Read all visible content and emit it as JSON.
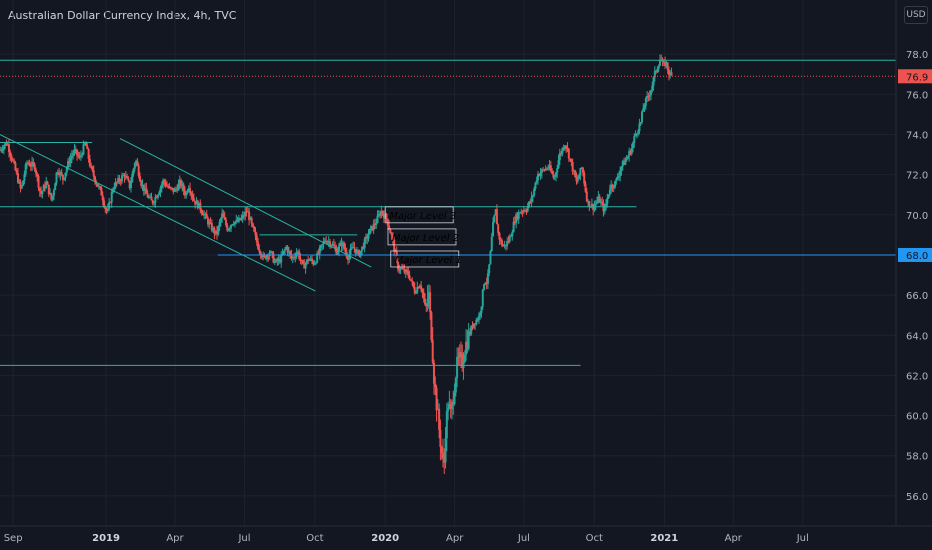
{
  "header": {
    "title": "Australian Dollar Currency Index, 4h, TVC",
    "currency_button": "USD"
  },
  "colors": {
    "background": "#131722",
    "grid": "#1e222d",
    "up": "#26a69a",
    "down": "#ef5350",
    "level_line": "#2bb3a3",
    "support_line": "#2196f3",
    "last_price": "#ef5350",
    "axis_text": "#b2b5be",
    "label_box": "#d1d4dc"
  },
  "chart_data": {
    "type": "candlestick",
    "title": "Australian Dollar Currency Index, 4h, TVC",
    "currency": "USD",
    "x_axis": {
      "ticks": [
        {
          "label": "Sep",
          "t": 2018.667,
          "major": false
        },
        {
          "label": "2019",
          "t": 2019.0,
          "major": true
        },
        {
          "label": "Apr",
          "t": 2019.247,
          "major": false
        },
        {
          "label": "Jul",
          "t": 2019.496,
          "major": false
        },
        {
          "label": "Oct",
          "t": 2019.748,
          "major": false
        },
        {
          "label": "2020",
          "t": 2020.0,
          "major": true
        },
        {
          "label": "Apr",
          "t": 2020.249,
          "major": false
        },
        {
          "label": "Jul",
          "t": 2020.497,
          "major": false
        },
        {
          "label": "Oct",
          "t": 2020.749,
          "major": false
        },
        {
          "label": "2021",
          "t": 2021.0,
          "major": true
        },
        {
          "label": "Apr",
          "t": 2021.247,
          "major": false
        },
        {
          "label": "Jul",
          "t": 2021.496,
          "major": false
        }
      ],
      "range": [
        2018.62,
        2021.83
      ]
    },
    "y_axis": {
      "ticks": [
        56.0,
        58.0,
        60.0,
        62.0,
        64.0,
        66.0,
        68.0,
        70.0,
        72.0,
        74.0,
        76.0,
        78.0
      ],
      "range": [
        54.5,
        80.7
      ]
    },
    "price_path": [
      [
        2018.62,
        73.2
      ],
      [
        2018.65,
        73.6
      ],
      [
        2018.68,
        72.2
      ],
      [
        2018.7,
        71.2
      ],
      [
        2018.72,
        72.6
      ],
      [
        2018.75,
        72.4
      ],
      [
        2018.77,
        71.0
      ],
      [
        2018.79,
        71.6
      ],
      [
        2018.81,
        70.7
      ],
      [
        2018.83,
        72.3
      ],
      [
        2018.85,
        71.8
      ],
      [
        2018.87,
        72.6
      ],
      [
        2018.89,
        73.2
      ],
      [
        2018.91,
        72.8
      ],
      [
        2018.93,
        73.6
      ],
      [
        2018.95,
        72.3
      ],
      [
        2018.97,
        71.6
      ],
      [
        2018.99,
        71.0
      ],
      [
        2019.0,
        70.4
      ],
      [
        2019.01,
        70.1
      ],
      [
        2019.03,
        71.4
      ],
      [
        2019.05,
        71.7
      ],
      [
        2019.07,
        72.0
      ],
      [
        2019.09,
        71.4
      ],
      [
        2019.11,
        72.8
      ],
      [
        2019.13,
        71.6
      ],
      [
        2019.15,
        71.0
      ],
      [
        2019.17,
        70.6
      ],
      [
        2019.19,
        71.1
      ],
      [
        2019.21,
        71.7
      ],
      [
        2019.23,
        71.3
      ],
      [
        2019.25,
        71.2
      ],
      [
        2019.27,
        71.6
      ],
      [
        2019.29,
        71.0
      ],
      [
        2019.3,
        71.5
      ],
      [
        2019.32,
        70.7
      ],
      [
        2019.34,
        70.4
      ],
      [
        2019.36,
        69.9
      ],
      [
        2019.38,
        69.4
      ],
      [
        2019.4,
        69.0
      ],
      [
        2019.42,
        70.0
      ],
      [
        2019.44,
        69.3
      ],
      [
        2019.46,
        69.7
      ],
      [
        2019.47,
        69.6
      ],
      [
        2019.49,
        69.8
      ],
      [
        2019.51,
        70.2
      ],
      [
        2019.53,
        69.3
      ],
      [
        2019.55,
        68.4
      ],
      [
        2019.57,
        67.8
      ],
      [
        2019.59,
        68.2
      ],
      [
        2019.61,
        67.6
      ],
      [
        2019.63,
        67.8
      ],
      [
        2019.65,
        68.4
      ],
      [
        2019.67,
        67.8
      ],
      [
        2019.69,
        68.2
      ],
      [
        2019.71,
        67.4
      ],
      [
        2019.73,
        67.8
      ],
      [
        2019.75,
        67.6
      ],
      [
        2019.77,
        68.2
      ],
      [
        2019.79,
        68.8
      ],
      [
        2019.81,
        68.6
      ],
      [
        2019.83,
        68.2
      ],
      [
        2019.85,
        68.6
      ],
      [
        2019.87,
        67.9
      ],
      [
        2019.89,
        68.4
      ],
      [
        2019.91,
        68.0
      ],
      [
        2019.93,
        68.6
      ],
      [
        2019.95,
        69.2
      ],
      [
        2019.97,
        69.6
      ],
      [
        2019.99,
        70.2
      ],
      [
        2020.01,
        69.8
      ],
      [
        2020.03,
        68.8
      ],
      [
        2020.05,
        67.4
      ],
      [
        2020.07,
        67.2
      ],
      [
        2020.09,
        67.0
      ],
      [
        2020.11,
        66.2
      ],
      [
        2020.13,
        66.6
      ],
      [
        2020.14,
        66.0
      ],
      [
        2020.15,
        65.2
      ],
      [
        2020.16,
        66.2
      ],
      [
        2020.165,
        65.0
      ],
      [
        2020.17,
        64.2
      ],
      [
        2020.18,
        61.8
      ],
      [
        2020.19,
        60.4
      ],
      [
        2020.2,
        59.0
      ],
      [
        2020.21,
        57.8
      ],
      [
        2020.215,
        57.2
      ],
      [
        2020.22,
        59.2
      ],
      [
        2020.23,
        60.6
      ],
      [
        2020.24,
        60.0
      ],
      [
        2020.25,
        61.2
      ],
      [
        2020.26,
        62.4
      ],
      [
        2020.27,
        62.8
      ],
      [
        2020.28,
        62.6
      ],
      [
        2020.29,
        63.4
      ],
      [
        2020.31,
        64.2
      ],
      [
        2020.32,
        64.6
      ],
      [
        2020.34,
        64.9
      ],
      [
        2020.35,
        65.6
      ],
      [
        2020.36,
        66.8
      ],
      [
        2020.37,
        66.6
      ],
      [
        2020.38,
        67.8
      ],
      [
        2020.39,
        69.4
      ],
      [
        2020.4,
        70.2
      ],
      [
        2020.41,
        69.0
      ],
      [
        2020.42,
        68.6
      ],
      [
        2020.43,
        68.4
      ],
      [
        2020.45,
        68.8
      ],
      [
        2020.47,
        69.8
      ],
      [
        2020.49,
        70.2
      ],
      [
        2020.51,
        70.3
      ],
      [
        2020.53,
        70.8
      ],
      [
        2020.55,
        72.0
      ],
      [
        2020.57,
        72.2
      ],
      [
        2020.59,
        72.4
      ],
      [
        2020.61,
        71.8
      ],
      [
        2020.63,
        73.0
      ],
      [
        2020.65,
        73.6
      ],
      [
        2020.67,
        72.6
      ],
      [
        2020.69,
        71.6
      ],
      [
        2020.71,
        72.4
      ],
      [
        2020.72,
        71.4
      ],
      [
        2020.73,
        70.6
      ],
      [
        2020.75,
        70.4
      ],
      [
        2020.77,
        70.8
      ],
      [
        2020.79,
        70.2
      ],
      [
        2020.81,
        71.4
      ],
      [
        2020.83,
        71.6
      ],
      [
        2020.85,
        72.4
      ],
      [
        2020.87,
        72.8
      ],
      [
        2020.89,
        73.4
      ],
      [
        2020.9,
        74.0
      ],
      [
        2020.92,
        74.6
      ],
      [
        2020.93,
        75.4
      ],
      [
        2020.95,
        76.0
      ],
      [
        2020.96,
        76.4
      ],
      [
        2020.97,
        77.0
      ],
      [
        2020.99,
        77.8
      ],
      [
        2021.0,
        77.4
      ],
      [
        2021.01,
        77.6
      ],
      [
        2021.02,
        77.1
      ],
      [
        2021.03,
        76.9
      ]
    ],
    "horizontal_lines": [
      {
        "price": 77.7,
        "x1": 2018.62,
        "x2": 2021.83,
        "color": "level_line"
      },
      {
        "price": 76.9,
        "x1": 2018.62,
        "x2": 2021.83,
        "color": "last_price",
        "dotted": true
      },
      {
        "price": 73.6,
        "x1": 2018.62,
        "x2": 2018.95,
        "color": "level_line"
      },
      {
        "price": 70.4,
        "x1": 2018.62,
        "x2": 2020.9,
        "color": "level_line"
      },
      {
        "price": 69.0,
        "x1": 2019.55,
        "x2": 2019.9,
        "color": "level_line"
      },
      {
        "price": 68.0,
        "x1": 2019.4,
        "x2": 2021.83,
        "color": "support_line"
      },
      {
        "price": 62.5,
        "x1": 2018.62,
        "x2": 2020.7,
        "color": "level_line"
      }
    ],
    "trend_lines": [
      {
        "x1": 2018.62,
        "y1": 74.0,
        "x2": 2019.75,
        "y2": 66.2
      },
      {
        "x1": 2019.05,
        "y1": 73.8,
        "x2": 2019.95,
        "y2": 67.4
      }
    ],
    "annotations": [
      {
        "text": "Major Level 3",
        "t": 2020.0,
        "price": 70.0
      },
      {
        "text": "Major Level 2",
        "t": 2020.01,
        "price": 68.9
      },
      {
        "text": "Major Level 1",
        "t": 2020.02,
        "price": 67.8
      }
    ],
    "price_badges": [
      {
        "label": "76.9",
        "price": 76.9,
        "color": "last_price"
      },
      {
        "label": "68.0",
        "price": 68.0,
        "color": "support_line"
      }
    ],
    "grid": true
  }
}
